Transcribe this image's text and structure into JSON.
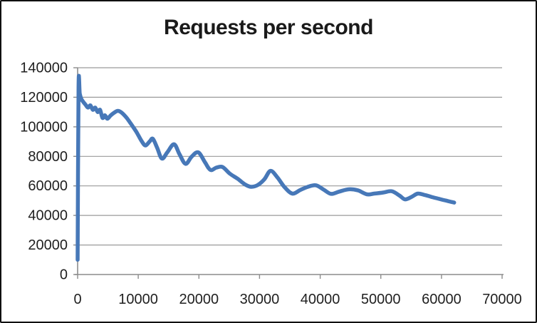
{
  "chart_data": {
    "type": "line",
    "title": "Requests per second",
    "xlabel": "",
    "ylabel": "",
    "xlim": [
      0,
      70000
    ],
    "ylim": [
      0,
      140000
    ],
    "x_ticks": [
      0,
      10000,
      20000,
      30000,
      40000,
      50000,
      60000,
      70000
    ],
    "y_ticks": [
      0,
      20000,
      40000,
      60000,
      80000,
      100000,
      120000,
      140000
    ],
    "grid": "horizontal",
    "legend": "none",
    "series": [
      {
        "name": "Requests per second",
        "points": [
          [
            0,
            10000
          ],
          [
            150,
            127000
          ],
          [
            350,
            122500
          ],
          [
            600,
            119000
          ],
          [
            900,
            117000
          ],
          [
            1300,
            115000
          ],
          [
            1700,
            113000
          ],
          [
            2100,
            114500
          ],
          [
            2500,
            111500
          ],
          [
            2900,
            113000
          ],
          [
            3300,
            110000
          ],
          [
            3700,
            111500
          ],
          [
            4100,
            106000
          ],
          [
            4500,
            107800
          ],
          [
            4900,
            105500
          ],
          [
            5400,
            107500
          ],
          [
            6000,
            109500
          ],
          [
            6600,
            110800
          ],
          [
            7200,
            109800
          ],
          [
            8000,
            106500
          ],
          [
            8800,
            102000
          ],
          [
            9700,
            96500
          ],
          [
            10600,
            90000
          ],
          [
            11200,
            87400
          ],
          [
            11900,
            90200
          ],
          [
            12400,
            91900
          ],
          [
            13100,
            86000
          ],
          [
            13900,
            78500
          ],
          [
            14800,
            82800
          ],
          [
            15900,
            88200
          ],
          [
            16800,
            81500
          ],
          [
            17800,
            74900
          ],
          [
            18800,
            79800
          ],
          [
            19900,
            82700
          ],
          [
            21000,
            76000
          ],
          [
            21900,
            70800
          ],
          [
            22900,
            72400
          ],
          [
            23900,
            72800
          ],
          [
            25100,
            68300
          ],
          [
            26400,
            64800
          ],
          [
            27600,
            61000
          ],
          [
            28600,
            59400
          ],
          [
            29700,
            60600
          ],
          [
            30800,
            64500
          ],
          [
            31800,
            70200
          ],
          [
            32900,
            66000
          ],
          [
            34100,
            59300
          ],
          [
            35400,
            54800
          ],
          [
            36700,
            57200
          ],
          [
            37900,
            59300
          ],
          [
            39300,
            60400
          ],
          [
            40600,
            57400
          ],
          [
            41800,
            54600
          ],
          [
            43100,
            56100
          ],
          [
            44700,
            57700
          ],
          [
            46200,
            57000
          ],
          [
            47700,
            54300
          ],
          [
            48900,
            54800
          ],
          [
            50400,
            55500
          ],
          [
            51800,
            56400
          ],
          [
            53100,
            53400
          ],
          [
            54000,
            50900
          ],
          [
            55100,
            52600
          ],
          [
            56100,
            54800
          ],
          [
            57300,
            53800
          ],
          [
            58500,
            52400
          ],
          [
            59700,
            51100
          ],
          [
            60900,
            49900
          ],
          [
            62100,
            48700
          ]
        ]
      }
    ]
  },
  "colors": {
    "line": "#4778b8",
    "gridline": "#9a9a9a",
    "axis": "#8c8c8c",
    "text": "#1f1f1f",
    "background": "#ffffff",
    "border": "#101010"
  }
}
